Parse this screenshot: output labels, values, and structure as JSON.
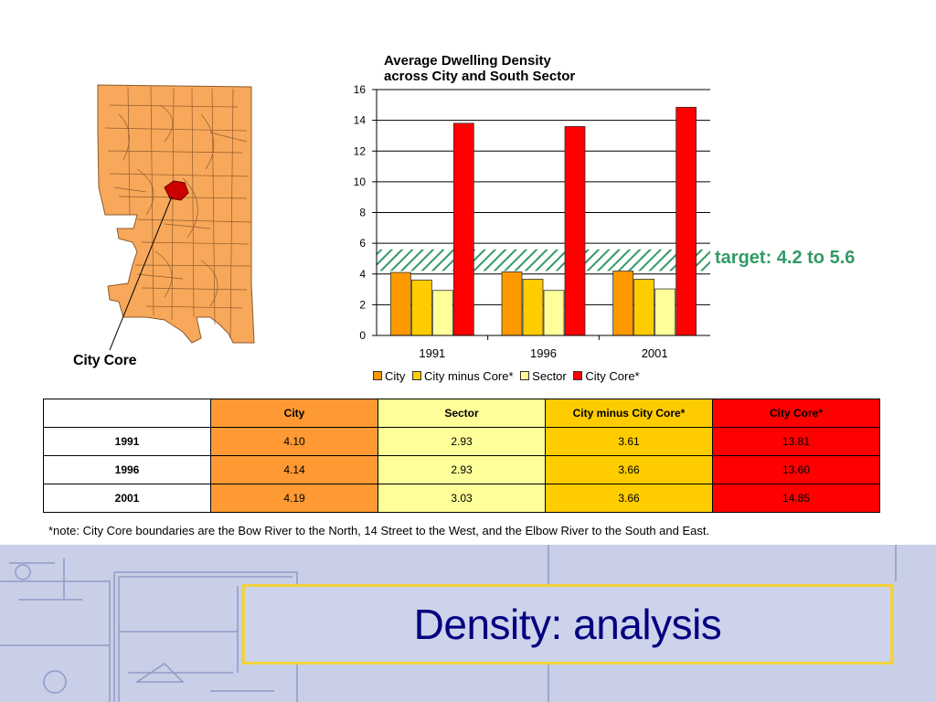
{
  "slide": {
    "title": "Density: analysis",
    "footnote": "*note: City Core boundaries are the Bow River to the North, 14 Street to the West, and the Elbow River to the South and East."
  },
  "map": {
    "label": "City Core",
    "fill_color": "#f7a85a",
    "core_color": "#cc0000"
  },
  "chart_data": {
    "type": "bar",
    "title_line1": "Average Dwelling Density",
    "title_line2": "across City and South Sector",
    "categories": [
      "1991",
      "1996",
      "2001"
    ],
    "series": [
      {
        "name": "City",
        "color": "#ff9900",
        "values": [
          4.1,
          4.14,
          4.19
        ]
      },
      {
        "name": "City minus Core*",
        "color": "#ffcc00",
        "values": [
          3.61,
          3.66,
          3.66
        ]
      },
      {
        "name": "Sector",
        "color": "#ffff99",
        "values": [
          2.93,
          2.93,
          3.03
        ]
      },
      {
        "name": "City Core*",
        "color": "#ff0000",
        "values": [
          13.81,
          13.6,
          14.85
        ]
      }
    ],
    "ylim": [
      0,
      16
    ],
    "yticks": [
      0,
      2,
      4,
      6,
      8,
      10,
      12,
      14,
      16
    ],
    "grid": true,
    "legend": "bottom",
    "target_band": {
      "min": 4.2,
      "max": 5.6,
      "label": "target: 4.2 to 5.6",
      "color": "#339966"
    }
  },
  "table": {
    "headers": [
      "",
      "City",
      "Sector",
      "City minus City Core*",
      "City Core*"
    ],
    "rows": [
      {
        "year": "1991",
        "city": "4.10",
        "sector": "2.93",
        "minus": "3.61",
        "core": "13.81"
      },
      {
        "year": "1996",
        "city": "4.14",
        "sector": "2.93",
        "minus": "3.66",
        "core": "13.60"
      },
      {
        "year": "2001",
        "city": "4.19",
        "sector": "3.03",
        "minus": "3.66",
        "core": "14.85"
      }
    ]
  }
}
